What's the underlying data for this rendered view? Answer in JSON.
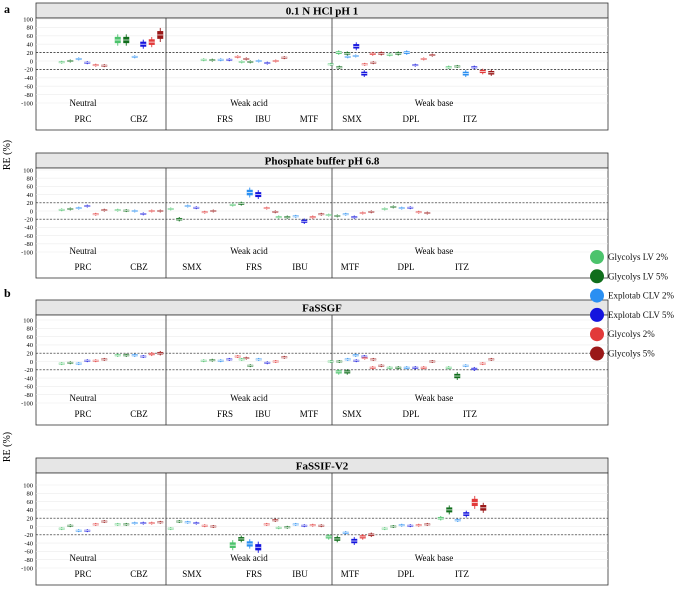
{
  "figure": {
    "panel_labels": [
      "a",
      "b"
    ],
    "y_axis_label": "RE (%)",
    "y_ticks": [
      100,
      80,
      60,
      40,
      20,
      0,
      -20,
      -40,
      -60,
      -80,
      -100
    ]
  },
  "legend": [
    {
      "label": "Glycolys LV 2%",
      "color": "#4cc36c"
    },
    {
      "label": "Glycolys LV 5%",
      "color": "#106e1c"
    },
    {
      "label": "Explotab CLV 2%",
      "color": "#2a8ff2"
    },
    {
      "label": "Explotab CLV 5%",
      "color": "#1414de"
    },
    {
      "label": "Glycolys 2%",
      "color": "#e23a3a"
    },
    {
      "label": "Glycolys 5%",
      "color": "#9a1818"
    }
  ],
  "chart_data": [
    {
      "type": "box",
      "title": "0.1 N HCl pH 1",
      "ylabel": "RE (%)",
      "ylim": [
        -100,
        100
      ],
      "groups": [
        "Neutral",
        "Weak acid",
        "Weak base"
      ],
      "drug_labels": [
        "PRC",
        "CBZ",
        "FRS",
        "IBU",
        "MTF",
        "SMX",
        "DPL",
        "ITZ"
      ],
      "reference_lines": [
        20,
        -20
      ],
      "drugs": [
        {
          "name": "PRC",
          "group": "Neutral",
          "medians": [
            -3,
            0,
            5,
            -4,
            -10,
            -11
          ]
        },
        {
          "name": "CBZ",
          "group": "Neutral",
          "medians": [
            50,
            50,
            10,
            40,
            45,
            62
          ]
        },
        {
          "name": "SMX",
          "group": "Weak acid",
          "medians": [
            null,
            null,
            null,
            null,
            null,
            null
          ]
        },
        {
          "name": "FRS",
          "group": "Weak acid",
          "medians": [
            3,
            2,
            3,
            3,
            10,
            5
          ]
        },
        {
          "name": "IBU",
          "group": "Weak acid",
          "medians": [
            -2,
            -2,
            0,
            -5,
            0,
            8
          ]
        },
        {
          "name": "MTF",
          "group": "Weak base",
          "medians": [
            20,
            18,
            12,
            -30,
            17,
            18
          ]
        },
        {
          "name": "SMX",
          "group": "Weak base",
          "medians": [
            -8,
            -15,
            10,
            35,
            -8,
            -4
          ]
        },
        {
          "name": "DPL",
          "group": "Weak base",
          "medians": [
            15,
            18,
            20,
            -10,
            5,
            14
          ]
        },
        {
          "name": "ITZ",
          "group": "Weak base",
          "medians": [
            -15,
            -13,
            -30,
            -15,
            -25,
            -28
          ]
        }
      ]
    },
    {
      "type": "box",
      "title": "Phosphate buffer pH 6.8",
      "ylabel": "RE (%)",
      "ylim": [
        -100,
        100
      ],
      "groups": [
        "Neutral",
        "Weak acid",
        "Weak base"
      ],
      "drug_labels": [
        "PRC",
        "CBZ",
        "SMX",
        "FRS",
        "IBU",
        "MTF",
        "DPL",
        "ITZ"
      ],
      "reference_lines": [
        20,
        -20
      ],
      "drugs": [
        {
          "name": "PRC",
          "group": "Neutral",
          "medians": [
            3,
            5,
            7,
            12,
            -8,
            2
          ]
        },
        {
          "name": "CBZ",
          "group": "Neutral",
          "medians": [
            2,
            1,
            0,
            -7,
            0,
            0
          ]
        },
        {
          "name": "SMX",
          "group": "Weak acid",
          "medians": [
            5,
            -20,
            12,
            8,
            -3,
            0
          ]
        },
        {
          "name": "FRS",
          "group": "Weak acid",
          "medians": [
            15,
            18,
            45,
            40,
            7,
            -2
          ]
        },
        {
          "name": "IBU",
          "group": "Weak acid",
          "medians": [
            -15,
            -15,
            -13,
            -25,
            -15,
            -8
          ]
        },
        {
          "name": "MTF",
          "group": "Weak base",
          "medians": [
            -10,
            -12,
            -8,
            -15,
            -5,
            -2
          ]
        },
        {
          "name": "DPL",
          "group": "Weak base",
          "medians": [
            5,
            10,
            7,
            8,
            -3,
            -5
          ]
        },
        {
          "name": "ITZ",
          "group": "Weak base",
          "medians": [
            null,
            null,
            null,
            null,
            null,
            null
          ]
        }
      ]
    },
    {
      "type": "box",
      "title": "FaSSGF",
      "ylabel": "RE (%)",
      "ylim": [
        -100,
        100
      ],
      "groups": [
        "Neutral",
        "Weak acid",
        "Weak base"
      ],
      "drug_labels": [
        "PRC",
        "CBZ",
        "FRS",
        "IBU",
        "MTF",
        "SMX",
        "DPL",
        "ITZ"
      ],
      "reference_lines": [
        20,
        -20
      ],
      "drugs": [
        {
          "name": "PRC",
          "group": "Neutral",
          "medians": [
            -5,
            -3,
            -5,
            2,
            2,
            5
          ]
        },
        {
          "name": "CBZ",
          "group": "Neutral",
          "medians": [
            15,
            15,
            15,
            12,
            18,
            20
          ]
        },
        {
          "name": "SMX",
          "group": "Weak acid",
          "medians": [
            null,
            null,
            null,
            null,
            null,
            null
          ]
        },
        {
          "name": "FRS",
          "group": "Weak acid",
          "medians": [
            2,
            3,
            2,
            5,
            12,
            8
          ]
        },
        {
          "name": "IBU",
          "group": "Weak acid",
          "medians": [
            5,
            -10,
            5,
            -3,
            0,
            10
          ]
        },
        {
          "name": "MTF",
          "group": "Weak base",
          "medians": [
            -25,
            -25,
            15,
            12,
            -15,
            -10
          ]
        },
        {
          "name": "SMX",
          "group": "Weak base",
          "medians": [
            0,
            0,
            5,
            2,
            8,
            5
          ]
        },
        {
          "name": "DPL",
          "group": "Weak base",
          "medians": [
            -15,
            -15,
            -15,
            -15,
            -15,
            0
          ]
        },
        {
          "name": "ITZ",
          "group": "Weak base",
          "medians": [
            -15,
            -35,
            -10,
            -18,
            -5,
            5
          ]
        }
      ]
    },
    {
      "type": "box",
      "title": "FaSSIF-V2",
      "ylabel": "RE (%)",
      "ylim": [
        -100,
        100
      ],
      "groups": [
        "Neutral",
        "Weak acid",
        "Weak base"
      ],
      "drug_labels": [
        "PRC",
        "CBZ",
        "SMX",
        "FRS",
        "IBU",
        "MTF",
        "DPL",
        "ITZ"
      ],
      "reference_lines": [
        20,
        -20
      ],
      "drugs": [
        {
          "name": "PRC",
          "group": "Neutral",
          "medians": [
            -5,
            2,
            -10,
            -10,
            5,
            12
          ]
        },
        {
          "name": "CBZ",
          "group": "Neutral",
          "medians": [
            5,
            5,
            8,
            8,
            8,
            10
          ]
        },
        {
          "name": "SMX",
          "group": "Weak acid",
          "medians": [
            -5,
            12,
            10,
            8,
            2,
            0
          ]
        },
        {
          "name": "FRS",
          "group": "Weak acid",
          "medians": [
            -45,
            -30,
            -42,
            -50,
            5,
            15
          ]
        },
        {
          "name": "IBU",
          "group": "Weak acid",
          "medians": [
            -3,
            -2,
            5,
            2,
            3,
            2
          ]
        },
        {
          "name": "MTF",
          "group": "Weak base",
          "medians": [
            -25,
            -30,
            -15,
            -35,
            -25,
            -20
          ]
        },
        {
          "name": "DPL",
          "group": "Weak base",
          "medians": [
            -5,
            0,
            3,
            2,
            3,
            5
          ]
        },
        {
          "name": "ITZ",
          "group": "Weak base",
          "medians": [
            20,
            40,
            15,
            30,
            58,
            45
          ]
        }
      ]
    }
  ]
}
